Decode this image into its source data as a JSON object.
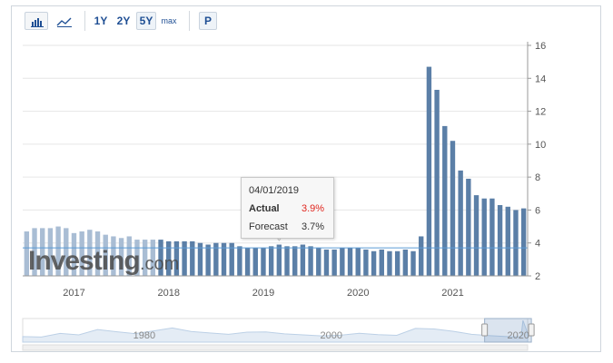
{
  "toolbar": {
    "chart_types": [
      {
        "name": "bar-chart-icon",
        "active": true
      },
      {
        "name": "line-chart-icon",
        "active": false
      }
    ],
    "ranges": [
      {
        "label": "1Y",
        "active": false
      },
      {
        "label": "2Y",
        "active": false
      },
      {
        "label": "5Y",
        "active": true
      },
      {
        "label": "max",
        "active": false
      }
    ],
    "print_label": "P"
  },
  "tooltip": {
    "date": "04/01/2019",
    "actual_label": "Actual",
    "actual_value": "3.9%",
    "forecast_label": "Forecast",
    "forecast_value": "3.7%"
  },
  "watermark": {
    "brand": "Investing",
    "suffix": ".com"
  },
  "colors": {
    "bar": "#5b7fa7",
    "bar_faded": "#a9bdd4",
    "accent": "#1f4f94",
    "actual": "#e0271f",
    "forecast_line": "#5b9bd5"
  },
  "chart_data": [
    {
      "type": "bar",
      "title": "",
      "xlabel": "",
      "ylabel": "",
      "x_tick_labels": [
        "2017",
        "2018",
        "2019",
        "2020",
        "2021"
      ],
      "y_tick_labels": [
        "2",
        "4",
        "6",
        "8",
        "10",
        "12",
        "14",
        "16"
      ],
      "ylim": [
        2,
        16
      ],
      "grid": true,
      "axis_position": "right",
      "forecast_reference": 3.7,
      "values": [
        4.7,
        4.9,
        4.9,
        4.9,
        5.0,
        4.9,
        4.6,
        4.7,
        4.8,
        4.7,
        4.5,
        4.4,
        4.3,
        4.4,
        4.2,
        4.2,
        4.2,
        4.2,
        4.1,
        4.1,
        4.1,
        4.1,
        4.0,
        3.9,
        4.0,
        4.0,
        4.0,
        3.8,
        3.7,
        3.7,
        3.7,
        3.8,
        3.9,
        3.8,
        3.8,
        3.9,
        3.8,
        3.7,
        3.6,
        3.6,
        3.7,
        3.7,
        3.7,
        3.6,
        3.5,
        3.6,
        3.5,
        3.5,
        3.6,
        3.5,
        4.4,
        14.7,
        13.3,
        11.1,
        10.2,
        8.4,
        7.9,
        6.9,
        6.7,
        6.7,
        6.3,
        6.2,
        6.0,
        6.1
      ],
      "highlight_index": 32
    },
    {
      "type": "area",
      "title": "",
      "x_tick_labels": [
        "1980",
        "2000",
        "2020"
      ],
      "xlim": [
        1967,
        2021
      ],
      "ylim": [
        0,
        16
      ],
      "x": [
        1967,
        1969,
        1971,
        1973,
        1975,
        1977,
        1979,
        1981,
        1983,
        1985,
        1987,
        1989,
        1991,
        1993,
        1995,
        1997,
        1999,
        2001,
        2003,
        2005,
        2007,
        2009,
        2011,
        2013,
        2015,
        2017,
        2019,
        2020.3,
        2020.5,
        2021
      ],
      "values": [
        3.8,
        3.5,
        5.9,
        4.9,
        8.5,
        7.1,
        5.8,
        7.6,
        9.6,
        7.2,
        6.2,
        5.3,
        6.8,
        6.9,
        5.6,
        4.9,
        4.2,
        4.7,
        6.0,
        5.1,
        4.6,
        9.3,
        8.9,
        7.4,
        5.3,
        4.4,
        3.7,
        3.6,
        14.7,
        6.1
      ],
      "selection": [
        2016.4,
        2021.4
      ]
    }
  ]
}
